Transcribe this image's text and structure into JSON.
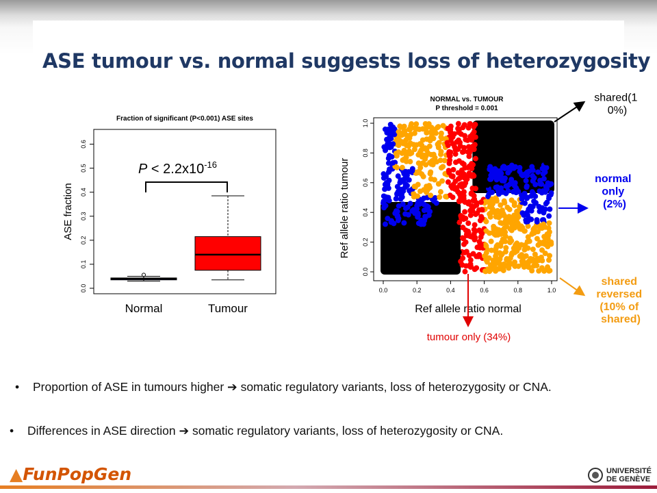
{
  "slide": {
    "title": "ASE tumour vs. normal suggests loss of heterozygosity",
    "bullets": [
      {
        "marker": "•",
        "text": "Proportion of ASE in tumours higher ➔ somatic regulatory variants, loss of heterozygosity or CNA."
      },
      {
        "marker": "•",
        "text": "Differences in ASE direction ➔ somatic regulatory variants, loss of heterozygosity or CNA."
      }
    ],
    "logo_left": "FunPopGen",
    "logo_right": [
      "UNIVERSITÉ",
      "DE GENÈVE"
    ]
  },
  "chart_data": [
    {
      "type": "box",
      "title": "Fraction of significant (P<0.001) ASE sites",
      "ylabel": "ASE fraction",
      "ylim": [
        0,
        0.65
      ],
      "yticks": [
        "0.0",
        "0.1",
        "0.2",
        "0.3",
        "0.4",
        "0.5",
        "0.6"
      ],
      "categories": [
        "Normal",
        "Tumour"
      ],
      "boxes": [
        {
          "name": "Normal",
          "whisker_low": 0.03,
          "q1": 0.035,
          "median": 0.04,
          "q3": 0.043,
          "whisker_high": 0.05,
          "outliers": [
            0.056
          ],
          "color": "#1f1f8f"
        },
        {
          "name": "Tumour",
          "whisker_low": 0.035,
          "q1": 0.075,
          "median": 0.14,
          "q3": 0.215,
          "whisker_high": 0.385,
          "outliers": [],
          "color": "#ff0000"
        }
      ],
      "annotation": {
        "p_prefix": "P",
        "p_text": " < 2.2x10",
        "p_exp": "-16"
      }
    },
    {
      "type": "scatter",
      "title": "NORMAL vs. TUMOUR",
      "subtitle": "P threshold = 0.001",
      "xlabel": "Ref allele ratio normal",
      "ylabel": "Ref allele ratio tumour",
      "xlim": [
        0,
        1
      ],
      "ylim": [
        0,
        1
      ],
      "xticks": [
        "0.0",
        "0.2",
        "0.4",
        "0.6",
        "0.8",
        "1.0"
      ],
      "yticks": [
        "0.0",
        "0.2",
        "0.4",
        "0.6",
        "0.8",
        "1.0"
      ],
      "groups": [
        {
          "color": "#000000",
          "label": "shared(10%)",
          "arrow_color": "#000000"
        },
        {
          "color": "#0000ee",
          "label": "normal only (2%)",
          "arrow_color": "#0000ee"
        },
        {
          "color": "#ffa500",
          "label": "shared reversed (10% of shared)",
          "arrow_color": "#f39c12"
        },
        {
          "color": "#ff0000",
          "label": "tumour only (34%)",
          "arrow_color": "#e00000"
        }
      ],
      "annotation_lines": {
        "shared": [
          "shared(1",
          "0%)"
        ],
        "normal": [
          "normal",
          "only",
          "(2%)"
        ],
        "reversed": [
          "shared",
          "reversed",
          "(10% of",
          "shared)"
        ],
        "tumour": "tumour only  (34%)"
      }
    }
  ]
}
